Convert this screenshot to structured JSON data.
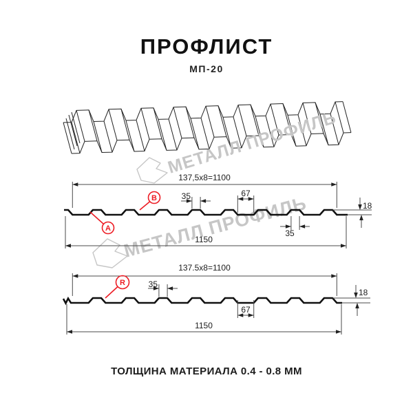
{
  "title": "ПРОФЛИСТ",
  "subtitle": "МП-20",
  "footer": "ТОЛЩИНА МАТЕРИАЛА 0.4 - 0.8 ММ",
  "watermark": {
    "text": "МЕТАЛЛ ПРОФИЛЬ",
    "color": "#c6c6c6"
  },
  "colors": {
    "profile_line": "#111111",
    "dimension_line": "#4a4a4a",
    "accent_red": "#ed1c24"
  },
  "diagram_top": {
    "pitch_formula": "137,5x8=1100",
    "rib_width_top": "35",
    "pan_width": "67",
    "height": "18",
    "rib_width_bottom": "35",
    "total_width": "1150",
    "markers": {
      "a": "A",
      "b": "B"
    }
  },
  "diagram_bottom": {
    "pitch_formula": "137.5x8=1100",
    "rib_width_top": "35",
    "pan_width": "67",
    "height": "18",
    "total_width": "1150",
    "markers": {
      "r": "R"
    }
  }
}
